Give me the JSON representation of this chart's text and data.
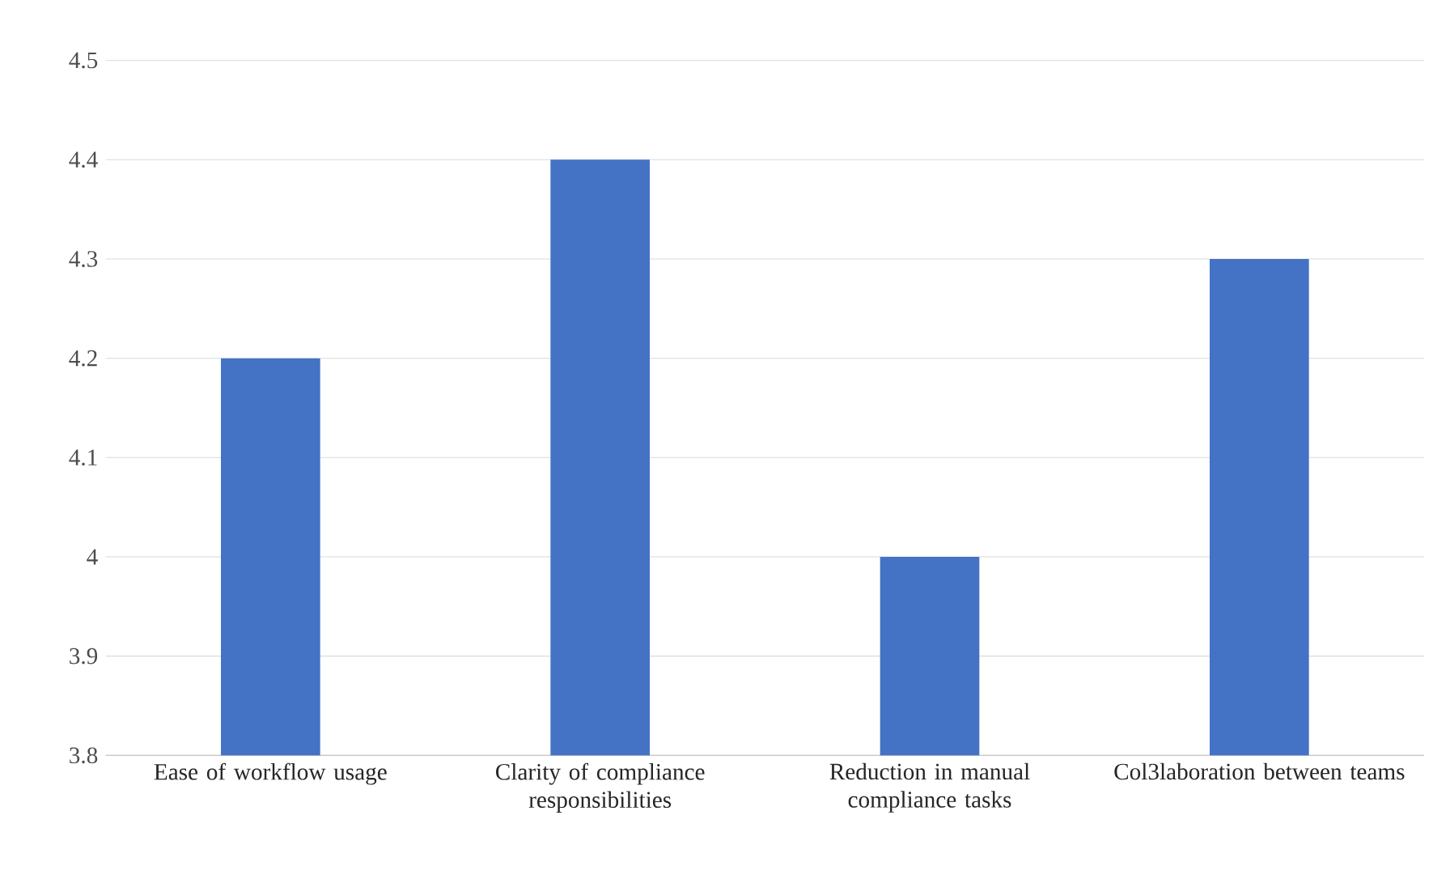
{
  "chart_data": {
    "type": "bar",
    "categories": [
      "Ease of workflow usage",
      "Clarity of compliance responsibilities",
      "Reduction in manual compliance tasks",
      "Col3laboration between teams"
    ],
    "values": [
      4.2,
      4.4,
      4.0,
      4.3
    ],
    "color": "#4472c4",
    "ylim": [
      3.8,
      4.5
    ],
    "yticks": [
      3.8,
      3.9,
      4,
      4.1,
      4.2,
      4.3,
      4.4,
      4.5
    ],
    "grid": "y"
  }
}
